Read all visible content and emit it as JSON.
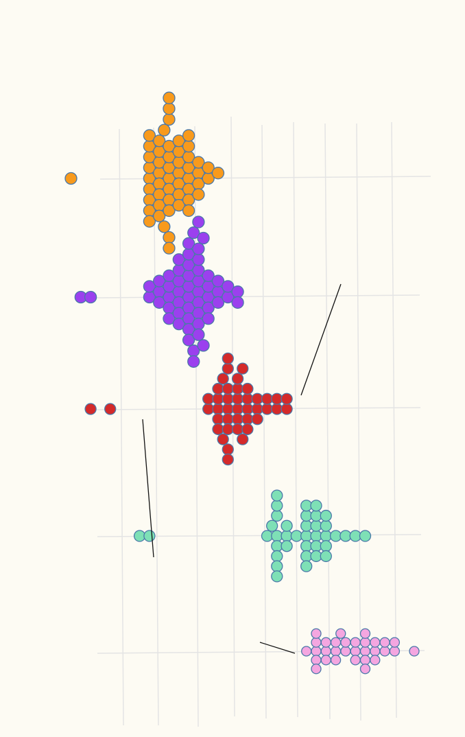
{
  "chart_data": {
    "type": "scatter",
    "subtype": "beeswarm",
    "title": "",
    "xlabel": "",
    "ylabel": "",
    "grid": true,
    "legend": "none",
    "background": "#fdfbf3",
    "grid_color": "#e4e4e4",
    "marker_stroke": "#4a78a8",
    "connector_color": "#111111",
    "series": [
      {
        "color": "#f89a1c",
        "outliers": [
          -5
        ],
        "values": [
          3,
          3,
          3,
          3,
          3,
          3,
          3,
          3,
          3,
          4,
          4,
          4,
          4,
          4,
          4,
          4,
          4,
          4.5,
          4.5,
          5,
          5,
          5,
          5,
          5,
          5,
          5,
          5,
          5,
          5,
          5,
          5,
          6,
          6,
          6,
          6,
          6,
          6,
          6,
          7,
          7,
          7,
          7,
          7,
          7,
          7,
          7,
          8,
          8,
          8,
          8,
          9,
          9,
          10
        ]
      },
      {
        "color": "#9b40ee",
        "outliers": [
          -4,
          -3
        ],
        "values": [
          3,
          3,
          4,
          4,
          4,
          5,
          5,
          5,
          5,
          5,
          6,
          6,
          6,
          6,
          6,
          6,
          6,
          7,
          7,
          7,
          7,
          7,
          7,
          7,
          7,
          7,
          7,
          7.5,
          7.5,
          7.5,
          8,
          8,
          8,
          8,
          8,
          8,
          8,
          8,
          8,
          8,
          8.5,
          8.5,
          9,
          9,
          9,
          9,
          9,
          10,
          10,
          10,
          11,
          11,
          12,
          12
        ]
      },
      {
        "color": "#d42a2a",
        "outliers": [
          -3,
          -1
        ],
        "values": [
          9,
          9,
          10,
          10,
          10,
          10,
          10,
          10.5,
          10.5,
          11,
          11,
          11,
          11,
          11,
          11,
          11,
          11,
          11,
          12,
          12,
          12,
          12,
          12,
          12,
          12.5,
          12.5,
          13,
          13,
          13,
          13,
          13,
          14,
          14,
          14,
          15,
          15,
          16,
          16,
          17,
          17
        ]
      },
      {
        "color": "#7ee0b6",
        "outliers": [
          2,
          3
        ],
        "values": [
          15,
          15.5,
          16,
          16,
          16,
          16,
          16,
          16,
          16,
          16,
          17,
          17,
          17,
          18,
          19,
          19,
          19,
          19,
          19,
          19,
          19,
          20,
          20,
          20,
          20,
          20,
          20,
          21,
          21,
          21,
          21,
          21,
          22,
          23,
          24,
          25
        ]
      },
      {
        "color": "#f4a6e0",
        "outliers": [
          30
        ],
        "values": [
          19,
          20,
          20,
          20,
          20,
          20,
          21,
          21,
          21,
          22,
          22,
          22,
          22.5,
          23,
          23,
          24,
          24,
          24,
          25,
          25,
          25,
          25,
          25,
          26,
          26,
          26,
          27,
          27,
          28,
          28
        ]
      }
    ],
    "annotations": [
      {
        "label": ""
      },
      {
        "label": ""
      },
      {
        "label": ""
      }
    ]
  }
}
